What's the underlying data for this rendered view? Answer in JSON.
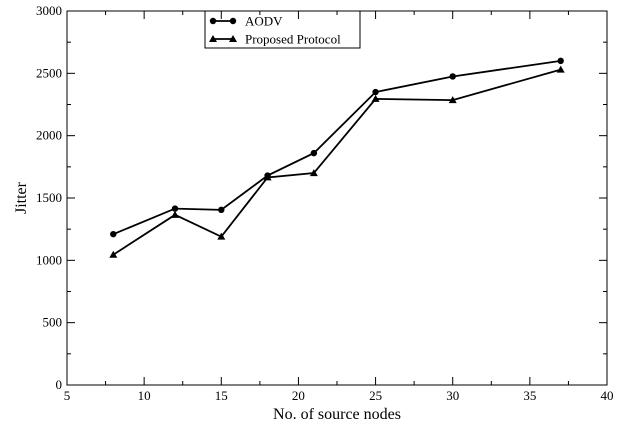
{
  "chart_data": {
    "type": "line",
    "title": "",
    "xlabel": "No. of source nodes",
    "ylabel": "Jitter",
    "xlim": [
      5,
      40
    ],
    "ylim": [
      0,
      3000
    ],
    "x_ticks": [
      5,
      10,
      15,
      20,
      25,
      30,
      35,
      40
    ],
    "y_ticks": [
      0,
      500,
      1000,
      1500,
      2000,
      2500,
      3000
    ],
    "grid": false,
    "legend_position": "top-left",
    "series": [
      {
        "name": "AODV",
        "marker": "circle",
        "color": "#000000",
        "x": [
          8,
          12,
          15,
          18,
          21,
          25,
          30,
          37
        ],
        "y": [
          1210,
          1415,
          1405,
          1680,
          1860,
          2350,
          2475,
          2600
        ]
      },
      {
        "name": "Proposed Protocol",
        "marker": "triangle",
        "color": "#000000",
        "x": [
          8,
          12,
          15,
          18,
          21,
          25,
          30,
          37
        ],
        "y": [
          1045,
          1365,
          1190,
          1665,
          1700,
          2295,
          2285,
          2530
        ]
      }
    ]
  }
}
